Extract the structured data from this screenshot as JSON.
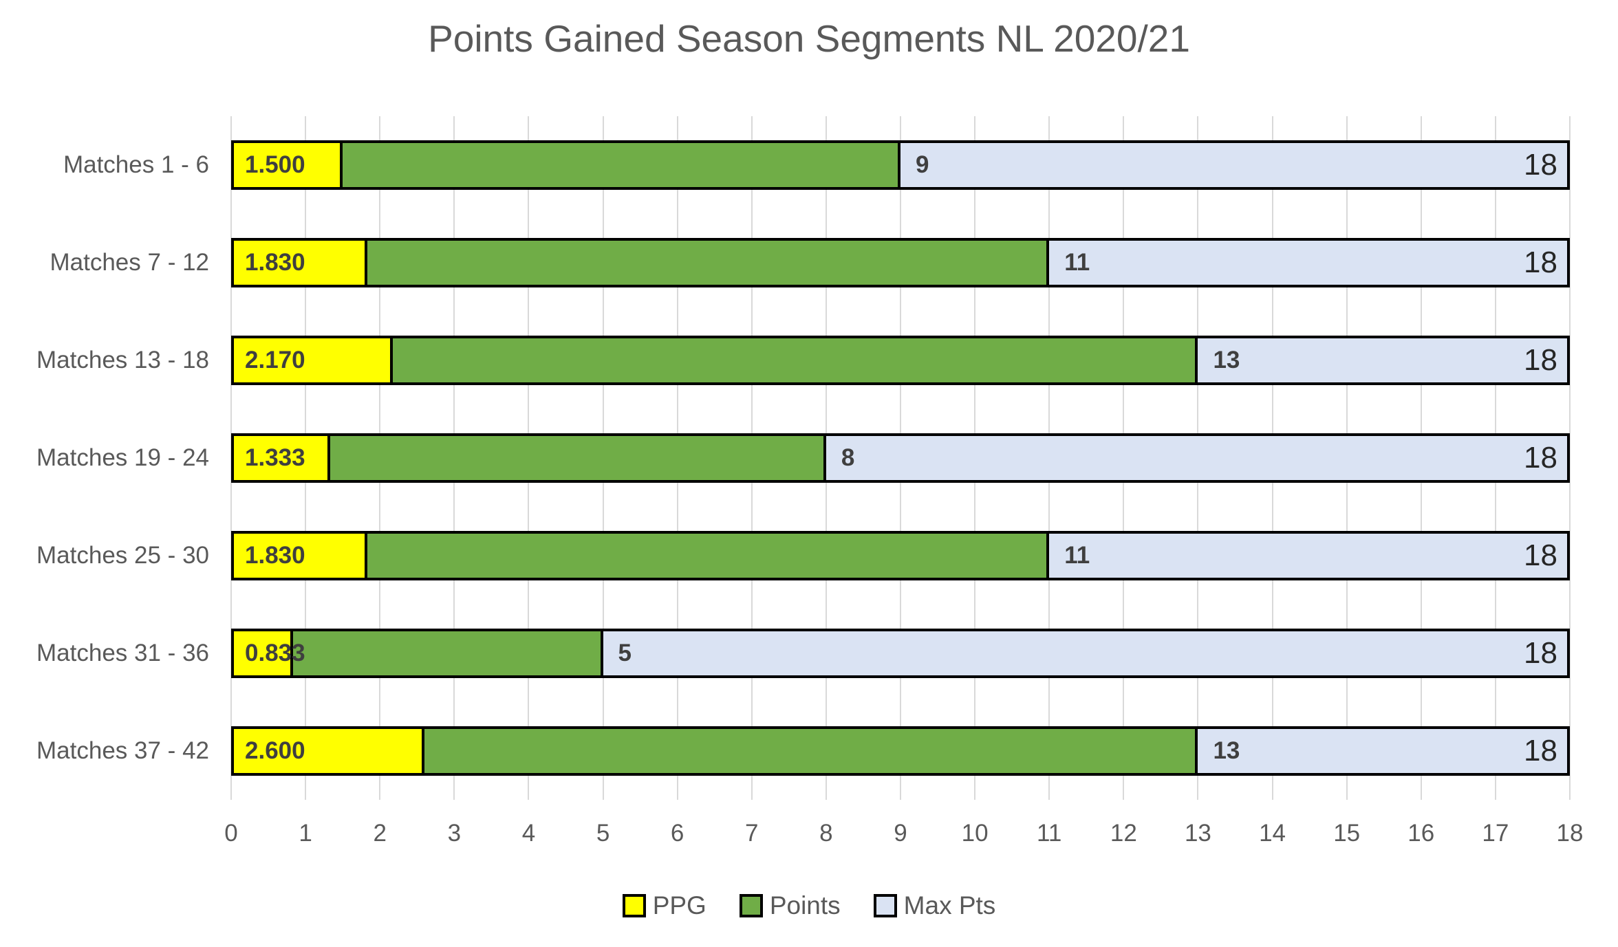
{
  "title": "Points Gained Season Segments NL 2020/21",
  "chart_data": {
    "type": "bar",
    "orientation": "horizontal",
    "title": "Points Gained Season Segments NL 2020/21",
    "xlabel": "",
    "ylabel": "",
    "xlim": [
      0,
      18
    ],
    "xticks": [
      "0",
      "1",
      "2",
      "3",
      "4",
      "5",
      "6",
      "7",
      "8",
      "9",
      "10",
      "11",
      "12",
      "13",
      "14",
      "15",
      "16",
      "17",
      "18"
    ],
    "grid": true,
    "legend_position": "bottom",
    "categories": [
      "Matches 1 - 6",
      "Matches 7 - 12",
      "Matches 13 - 18",
      "Matches 19 - 24",
      "Matches 25 - 30",
      "Matches 31 - 36",
      "Matches 37 - 42"
    ],
    "series": [
      {
        "name": "PPG",
        "color": "#ffff00",
        "values": [
          1.5,
          1.83,
          2.17,
          1.333,
          1.83,
          0.833,
          2.6
        ],
        "labels": [
          "1.500",
          "1.830",
          "2.170",
          "1.333",
          "1.830",
          "0.833",
          "2.600"
        ]
      },
      {
        "name": "Points",
        "color": "#70ad47",
        "values": [
          9,
          11,
          13,
          8,
          11,
          5,
          13
        ],
        "labels": [
          "9",
          "11",
          "13",
          "8",
          "11",
          "5",
          "13"
        ]
      },
      {
        "name": "Max Pts",
        "color": "#dae3f3",
        "values": [
          18,
          18,
          18,
          18,
          18,
          18,
          18
        ],
        "labels": [
          "18",
          "18",
          "18",
          "18",
          "18",
          "18",
          "18"
        ]
      }
    ]
  },
  "colors": {
    "ppg": "#ffff00",
    "points": "#70ad47",
    "max_pts": "#dae3f3",
    "bar_border": "#000000",
    "gridline": "#d9d9d9",
    "title_text": "#595959",
    "axis_text": "#595959",
    "value_label_text": "#3f3f3f",
    "max_label_text": "#262626"
  }
}
